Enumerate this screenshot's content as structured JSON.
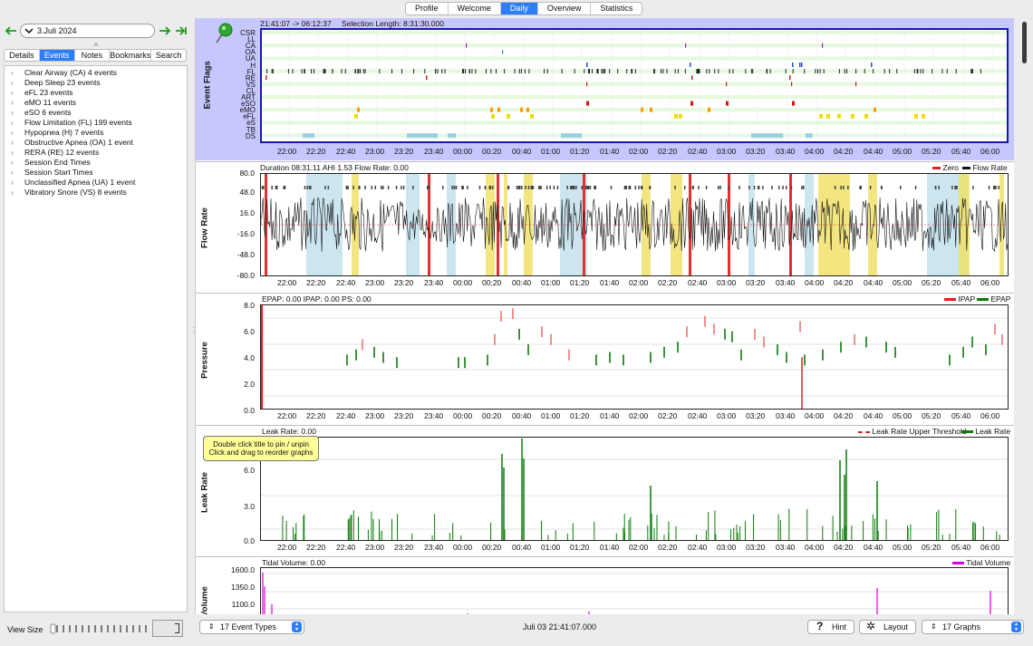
{
  "top_tabs": [
    {
      "label": "Profile",
      "selected": false
    },
    {
      "label": "Welcome",
      "selected": false
    },
    {
      "label": "Daily",
      "selected": true
    },
    {
      "label": "Overview",
      "selected": false
    },
    {
      "label": "Statistics",
      "selected": false
    }
  ],
  "date": {
    "value": "3.Juli 2024"
  },
  "left_tabs": [
    {
      "label": "Details",
      "selected": false
    },
    {
      "label": "Events",
      "selected": true
    },
    {
      "label": "Notes",
      "selected": false
    },
    {
      "label": "Bookmarks",
      "selected": false
    },
    {
      "label": "Search",
      "selected": false
    }
  ],
  "events": [
    "Clear Airway (CA) 4 events",
    "Deep Sleep 23 events",
    "eFL 23 events",
    "eMO 11 events",
    "eSO 6 events",
    "Flow Limitation (FL) 199 events",
    "Hypopnea (H) 7 events",
    "Obstructive Apnea (OA) 1 event",
    "RERA (RE) 12 events",
    "Session End Times",
    "Session Start Times",
    "Unclassified Apnea (UA) 1 event",
    "Vibratory Snore (VS) 8 events"
  ],
  "view_size_label": "View Size",
  "time_ticks": [
    "22:00",
    "22:20",
    "22:40",
    "23:00",
    "23:20",
    "23:40",
    "00:00",
    "00:20",
    "00:40",
    "01:00",
    "01:20",
    "01:40",
    "02:00",
    "02:20",
    "02:40",
    "03:00",
    "03:20",
    "03:40",
    "04:00",
    "04:20",
    "04:40",
    "05:00",
    "05:20",
    "05:40",
    "06:00"
  ],
  "event_flags": {
    "ylabel": "Event Flags",
    "time_range": "21:41:07 -> 06:12:37",
    "selection": "Selection Length: 8:31:30.000",
    "rows": [
      "CSR",
      "LL",
      "CA",
      "OA",
      "UA",
      "H",
      "FL",
      "RE",
      "VS",
      "CL",
      "ART",
      "eSO",
      "eMO",
      "eFL",
      "eS",
      "TB",
      "DS"
    ]
  },
  "flow_rate": {
    "ylabel": "Flow Rate",
    "title": "Duration 08:31:11 AHI 1.53 Flow Rate: 0.00",
    "legend": [
      "Zero",
      "Flow Rate"
    ],
    "yticks": [
      "80.0",
      "48.0",
      "16.0",
      "-16.0",
      "-48.0",
      "-80.0"
    ]
  },
  "pressure": {
    "ylabel": "Pressure",
    "title": "EPAP: 0.00 IPAP: 0.00 PS: 0.00",
    "legend": [
      "IPAP",
      "EPAP"
    ],
    "yticks": [
      "8.0",
      "6.0",
      "4.0",
      "2.0",
      "0.0"
    ]
  },
  "leak": {
    "ylabel": "Leak Rate",
    "title": "Leak Rate: 0.00",
    "legend": [
      "Leak Rate Upper Threshold",
      "Leak Rate"
    ],
    "yticks": [
      "6.0",
      "3.0",
      "0.0"
    ]
  },
  "tidal": {
    "ylabel": "Tidal Volume",
    "title": "Tidal Volume: 0.00",
    "legend": [
      "Tidal Volume"
    ],
    "yticks": [
      "1600.0",
      "1350.0",
      "1100.0"
    ]
  },
  "tooltip": {
    "line1": "Double click title to pin / unpin",
    "line2": "Click and drag to reorder graphs"
  },
  "bottom": {
    "event_types": "17 Event Types",
    "datetime": "Juli 03 21:41:07.000",
    "hint": "Hint",
    "layout": "Layout",
    "graphs": "17 Graphs"
  },
  "colors": {
    "accent": "#2d7ff9",
    "ipap": "#e02020",
    "epap": "#0a7a0a",
    "leak": "#0a7a0a",
    "tidal": "#e000e0",
    "flags_bg": "#c7c7ff",
    "flag_row": "#e7fbe3"
  }
}
